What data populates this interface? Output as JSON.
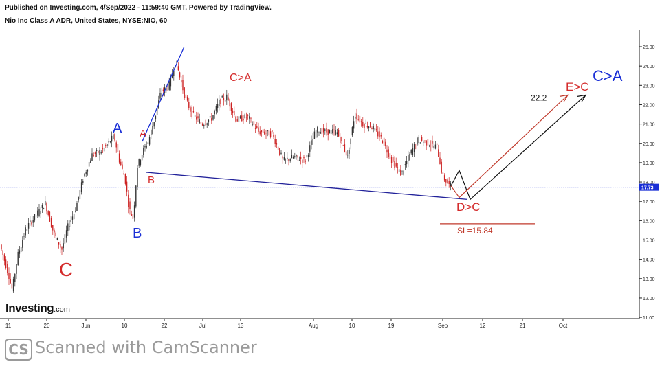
{
  "header": {
    "published": "Published on Investing.com, 4/Sep/2022 - 11:59:40 GMT, Powered by TradingView.",
    "instrument": "Nio Inc Class A ADR, United States, NYSE:NIO, 60"
  },
  "logo": {
    "main": "Investing",
    "suffix": ".com"
  },
  "watermark": {
    "badge": "CS",
    "text": "Scanned with CamScanner"
  },
  "colors": {
    "up": "#333333",
    "down": "#cc2222",
    "blue_label": "#1a2fd6",
    "red_label": "#d42a2a",
    "price_line": "#1a2fd6",
    "price_tag": "#1a2fd6"
  },
  "chart_data": {
    "type": "line",
    "title": "",
    "xlabel": "",
    "ylabel": "",
    "ylim": [
      11,
      25.9
    ],
    "y_ticks": [
      "25.00",
      "24.00",
      "23.00",
      "22.00",
      "21.00",
      "20.00",
      "19.00",
      "18.00",
      "17.00",
      "16.00",
      "15.00",
      "14.00",
      "13.00",
      "12.00",
      "11.00"
    ],
    "x_ticks": [
      "11",
      "20",
      "Jun",
      "10",
      "22",
      "Jul",
      "13",
      "Aug",
      "10",
      "19",
      "Sep",
      "12",
      "21",
      "Oct"
    ],
    "current_price": {
      "value": 17.73,
      "label": "17.73"
    },
    "price_path": [
      [
        0,
        15.0
      ],
      [
        14,
        13.3
      ],
      [
        20,
        12.4
      ],
      [
        28,
        14.2
      ],
      [
        40,
        15.6
      ],
      [
        55,
        16.3
      ],
      [
        68,
        16.9
      ],
      [
        80,
        15.4
      ],
      [
        92,
        14.5
      ],
      [
        100,
        15.6
      ],
      [
        112,
        16.6
      ],
      [
        124,
        18.3
      ],
      [
        136,
        19.4
      ],
      [
        150,
        19.6
      ],
      [
        160,
        20.0
      ],
      [
        168,
        20.4
      ],
      [
        176,
        19.1
      ],
      [
        184,
        18.2
      ],
      [
        190,
        16.6
      ],
      [
        196,
        16.1
      ],
      [
        202,
        18.8
      ],
      [
        210,
        19.6
      ],
      [
        218,
        20.1
      ],
      [
        228,
        21.4
      ],
      [
        236,
        22.6
      ],
      [
        248,
        23.0
      ],
      [
        258,
        24.3
      ],
      [
        264,
        23.4
      ],
      [
        272,
        22.3
      ],
      [
        282,
        21.5
      ],
      [
        296,
        21.0
      ],
      [
        310,
        21.3
      ],
      [
        322,
        22.2
      ],
      [
        332,
        22.4
      ],
      [
        346,
        21.2
      ],
      [
        362,
        21.4
      ],
      [
        378,
        20.6
      ],
      [
        398,
        20.5
      ],
      [
        414,
        19.1
      ],
      [
        430,
        19.3
      ],
      [
        446,
        19.1
      ],
      [
        462,
        20.7
      ],
      [
        476,
        20.6
      ],
      [
        492,
        20.6
      ],
      [
        508,
        19.3
      ],
      [
        518,
        21.5
      ],
      [
        530,
        21.0
      ],
      [
        542,
        20.9
      ],
      [
        558,
        20.2
      ],
      [
        572,
        19.1
      ],
      [
        586,
        18.4
      ],
      [
        598,
        19.4
      ],
      [
        610,
        20.2
      ],
      [
        626,
        20.0
      ],
      [
        638,
        19.8
      ],
      [
        646,
        18.3
      ],
      [
        656,
        17.8
      ]
    ],
    "trendlines": [
      {
        "from": [
          "2022-06-15",
          20.1
        ],
        "to": [
          "2022-06-27",
          25.0
        ],
        "color": "blue"
      },
      {
        "from": [
          "2022-06-16",
          18.5
        ],
        "to": [
          "2022-09-09",
          17.1
        ],
        "color": "blue"
      }
    ],
    "projection": {
      "path_black": [
        [
          656,
          17.8
        ],
        [
          668,
          18.6
        ],
        [
          684,
          17.1
        ],
        [
          852,
          22.5
        ]
      ],
      "path_red": [
        [
          656,
          17.8
        ],
        [
          668,
          17.2
        ],
        [
          826,
          22.5
        ]
      ],
      "target_level": {
        "value": 22.2,
        "label": "22.2"
      },
      "stop_loss": {
        "value": 15.84,
        "label": "SL=15.84"
      }
    },
    "annotations": [
      {
        "text": "A",
        "color": "blue"
      },
      {
        "text": "A",
        "color": "red"
      },
      {
        "text": "B",
        "color": "red"
      },
      {
        "text": "B",
        "color": "blue"
      },
      {
        "text": "C",
        "color": "red"
      },
      {
        "text": "C>A",
        "color": "red"
      },
      {
        "text": "D>C",
        "color": "red"
      },
      {
        "text": "E>C",
        "color": "red"
      },
      {
        "text": "C>A",
        "color": "blue"
      }
    ]
  }
}
